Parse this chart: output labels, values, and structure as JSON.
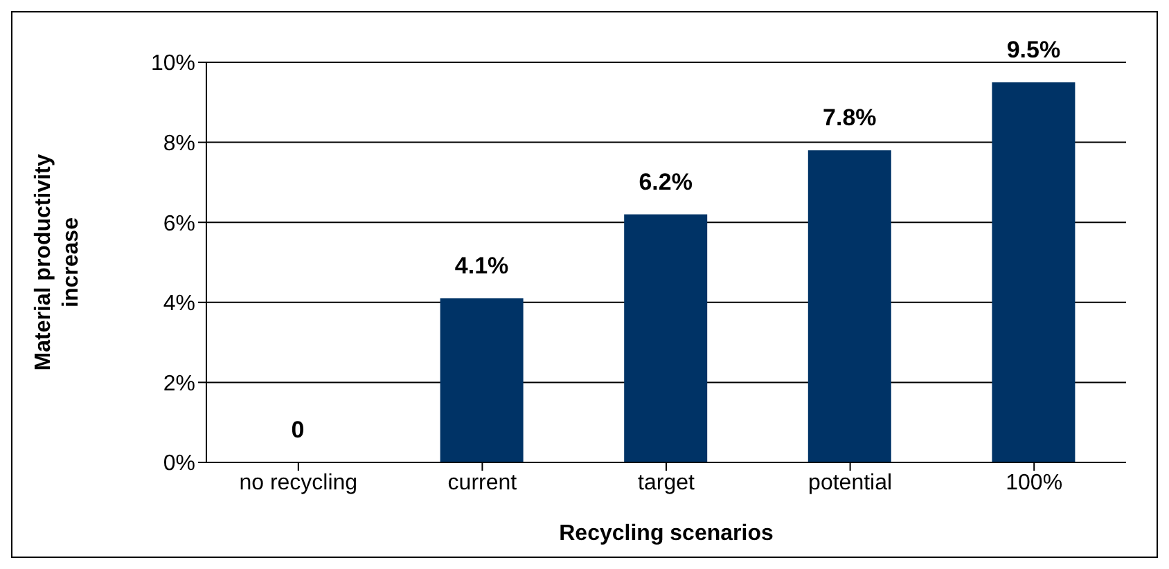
{
  "chart_data": {
    "type": "bar",
    "xlabel": "Recycling scenarios",
    "ylabel": "Material productivity increase",
    "categories": [
      "no recycling",
      "current",
      "target",
      "potential",
      "100%"
    ],
    "values": [
      0,
      4.1,
      6.2,
      7.8,
      9.5
    ],
    "value_labels": [
      "0",
      "4.1%",
      "6.2%",
      "7.8%",
      "9.5%"
    ],
    "color": "#003366",
    "ylim": [
      0,
      10
    ],
    "yticks": [
      {
        "value": 0,
        "label": "0%"
      },
      {
        "value": 2,
        "label": "2%"
      },
      {
        "value": 4,
        "label": "4%"
      },
      {
        "value": 6,
        "label": "6%"
      },
      {
        "value": 8,
        "label": "8%"
      },
      {
        "value": 10,
        "label": "10%"
      }
    ],
    "grid": "y",
    "legend": false
  }
}
